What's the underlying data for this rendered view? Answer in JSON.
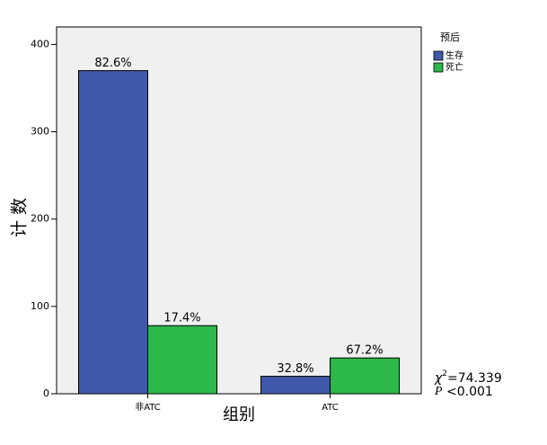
{
  "chart_data": {
    "type": "bar",
    "y_label": "计 数",
    "x_label": "组别",
    "categories": [
      "非ATC",
      "ATC"
    ],
    "legend_title": "预后",
    "series": [
      {
        "name": "生存",
        "color": "#3f58a9",
        "values": [
          370,
          20
        ],
        "labels": [
          "82.6%",
          "32.8%"
        ]
      },
      {
        "name": "死亡",
        "color": "#2db84a",
        "values": [
          78,
          41
        ],
        "labels": [
          "17.4%",
          "67.2%"
        ]
      }
    ],
    "ylim": [
      0,
      420
    ],
    "yticks": [
      0,
      100,
      200,
      300,
      400
    ],
    "legend_position": "upper right outside",
    "stat_symbol": "χ",
    "stat_superscript": "2",
    "stat_value": "=74.339",
    "p_symbol": "P",
    "p_value": "<0.001"
  }
}
